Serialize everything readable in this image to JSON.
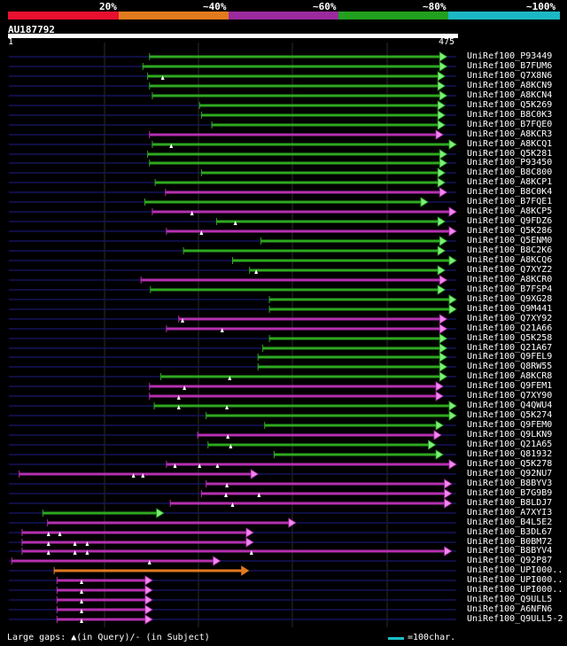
{
  "scale": {
    "labels": [
      "20%",
      "~40%",
      "~60%",
      "~80%",
      "~100%"
    ],
    "colors": [
      "#e8102e",
      "#e37b1e",
      "#9b2a9e",
      "#23a020",
      "#1bb8c4"
    ]
  },
  "query": {
    "id": "AU187792",
    "start": "1",
    "end": "475"
  },
  "colors": {
    "green": "#2ea820",
    "magenta": "#b530b0",
    "orange": "#e07a20",
    "arrow_green": "#7cf07a",
    "arrow_magenta": "#f088f0"
  },
  "chart_data": {
    "type": "alignment",
    "title": "AU187792",
    "x_range": [
      1,
      475
    ],
    "rows": [
      {
        "name": "UniRef100_P93449",
        "start": 150,
        "end": 465,
        "color": "green",
        "marks": []
      },
      {
        "name": "UniRef100_B7FUM6",
        "start": 143,
        "end": 465,
        "color": "green",
        "marks": []
      },
      {
        "name": "UniRef100_Q7X8N6",
        "start": 148,
        "end": 463,
        "color": "green",
        "marks": [
          164
        ]
      },
      {
        "name": "UniRef100_A8KCN9",
        "start": 150,
        "end": 463,
        "color": "green",
        "marks": []
      },
      {
        "name": "UniRef100_A8KCN4",
        "start": 153,
        "end": 465,
        "color": "green",
        "marks": []
      },
      {
        "name": "UniRef100_Q5K269",
        "start": 203,
        "end": 463,
        "color": "green",
        "marks": []
      },
      {
        "name": "UniRef100_B8C0K3",
        "start": 205,
        "end": 463,
        "color": "green",
        "marks": []
      },
      {
        "name": "UniRef100_B7FQE0",
        "start": 216,
        "end": 463,
        "color": "green",
        "marks": []
      },
      {
        "name": "UniRef100_A8KCR3",
        "start": 150,
        "end": 461,
        "color": "magenta",
        "marks": []
      },
      {
        "name": "UniRef100_A8KCQ1",
        "start": 153,
        "end": 475,
        "color": "green",
        "marks": [
          173
        ]
      },
      {
        "name": "UniRef100_Q5K281",
        "start": 148,
        "end": 465,
        "color": "green",
        "marks": []
      },
      {
        "name": "UniRef100_P93450",
        "start": 150,
        "end": 465,
        "color": "green",
        "marks": []
      },
      {
        "name": "UniRef100_B8C800",
        "start": 205,
        "end": 463,
        "color": "green",
        "marks": []
      },
      {
        "name": "UniRef100_A8KCP1",
        "start": 156,
        "end": 463,
        "color": "green",
        "marks": []
      },
      {
        "name": "UniRef100_B8C0K4",
        "start": 167,
        "end": 465,
        "color": "magenta",
        "marks": []
      },
      {
        "name": "UniRef100_B7FQE1",
        "start": 145,
        "end": 445,
        "color": "green",
        "marks": []
      },
      {
        "name": "UniRef100_A8KCP5",
        "start": 153,
        "end": 475,
        "color": "magenta",
        "marks": [
          195
        ]
      },
      {
        "name": "UniRef100_Q9FDZ6",
        "start": 221,
        "end": 463,
        "color": "green",
        "marks": [
          241
        ]
      },
      {
        "name": "UniRef100_Q5K286",
        "start": 168,
        "end": 475,
        "color": "magenta",
        "marks": [
          205
        ]
      },
      {
        "name": "UniRef100_Q5ENM0",
        "start": 268,
        "end": 465,
        "color": "green",
        "marks": []
      },
      {
        "name": "UniRef100_B8C2K6",
        "start": 186,
        "end": 463,
        "color": "green",
        "marks": []
      },
      {
        "name": "UniRef100_A8KCQ6",
        "start": 238,
        "end": 475,
        "color": "green",
        "marks": []
      },
      {
        "name": "UniRef100_Q7XYZ2",
        "start": 256,
        "end": 463,
        "color": "green",
        "marks": [
          263
        ]
      },
      {
        "name": "UniRef100_A8KCR0",
        "start": 141,
        "end": 465,
        "color": "magenta",
        "marks": []
      },
      {
        "name": "UniRef100_B7FSP4",
        "start": 151,
        "end": 463,
        "color": "green",
        "marks": []
      },
      {
        "name": "UniRef100_Q9XG28",
        "start": 277,
        "end": 475,
        "color": "green",
        "marks": []
      },
      {
        "name": "UniRef100_Q9M441",
        "start": 277,
        "end": 475,
        "color": "green",
        "marks": []
      },
      {
        "name": "UniRef100_Q7XY92",
        "start": 181,
        "end": 465,
        "color": "magenta",
        "marks": [
          185
        ]
      },
      {
        "name": "UniRef100_Q21A66",
        "start": 168,
        "end": 465,
        "color": "magenta",
        "marks": [
          227
        ]
      },
      {
        "name": "UniRef100_Q5K258",
        "start": 277,
        "end": 465,
        "color": "green",
        "marks": []
      },
      {
        "name": "UniRef100_Q21A67",
        "start": 270,
        "end": 465,
        "color": "green",
        "marks": []
      },
      {
        "name": "UniRef100_Q9FEL9",
        "start": 265,
        "end": 465,
        "color": "green",
        "marks": []
      },
      {
        "name": "UniRef100_Q8RW55",
        "start": 265,
        "end": 465,
        "color": "green",
        "marks": []
      },
      {
        "name": "UniRef100_A8KCR8",
        "start": 162,
        "end": 465,
        "color": "green",
        "marks": [
          235
        ]
      },
      {
        "name": "UniRef100_Q9FEM1",
        "start": 150,
        "end": 461,
        "color": "magenta",
        "marks": [
          187
        ]
      },
      {
        "name": "UniRef100_Q7XY90",
        "start": 150,
        "end": 461,
        "color": "magenta",
        "marks": [
          181
        ]
      },
      {
        "name": "UniRef100_Q4QWU4",
        "start": 155,
        "end": 475,
        "color": "green",
        "marks": [
          181,
          232
        ]
      },
      {
        "name": "UniRef100_Q5K274",
        "start": 210,
        "end": 475,
        "color": "green",
        "marks": []
      },
      {
        "name": "UniRef100_Q9FEM0",
        "start": 272,
        "end": 461,
        "color": "green",
        "marks": []
      },
      {
        "name": "UniRef100_Q9LKN9",
        "start": 201,
        "end": 459,
        "color": "magenta",
        "marks": [
          233
        ]
      },
      {
        "name": "UniRef100_Q21A65",
        "start": 212,
        "end": 453,
        "color": "green",
        "marks": [
          236
        ]
      },
      {
        "name": "UniRef100_Q81932",
        "start": 282,
        "end": 461,
        "color": "green",
        "marks": []
      },
      {
        "name": "UniRef100_Q5K278",
        "start": 168,
        "end": 475,
        "color": "magenta",
        "marks": [
          177,
          203,
          222
        ]
      },
      {
        "name": "UniRef100_Q92NU7",
        "start": 12,
        "end": 265,
        "color": "magenta",
        "marks": [
          133,
          143
        ]
      },
      {
        "name": "UniRef100_B8BYV3",
        "start": 210,
        "end": 470,
        "color": "magenta",
        "marks": [
          232
        ]
      },
      {
        "name": "UniRef100_B7G9B9",
        "start": 205,
        "end": 470,
        "color": "magenta",
        "marks": [
          231,
          266
        ]
      },
      {
        "name": "UniRef100_B8LDJ7",
        "start": 172,
        "end": 470,
        "color": "magenta",
        "marks": [
          238
        ]
      },
      {
        "name": "UniRef100_A7XYI3",
        "start": 37,
        "end": 165,
        "color": "green",
        "marks": []
      },
      {
        "name": "UniRef100_B4L5E2",
        "start": 42,
        "end": 305,
        "color": "magenta",
        "marks": []
      },
      {
        "name": "UniRef100_B3DL67",
        "start": 15,
        "end": 260,
        "color": "magenta",
        "marks": [
          43,
          55
        ]
      },
      {
        "name": "UniRef100_B0BM72",
        "start": 15,
        "end": 260,
        "color": "magenta",
        "marks": [
          43,
          71,
          84
        ]
      },
      {
        "name": "UniRef100_B8BYV4",
        "start": 15,
        "end": 470,
        "color": "magenta",
        "marks": [
          43,
          71,
          84,
          258
        ]
      },
      {
        "name": "UniRef100_Q92P87",
        "start": 4,
        "end": 225,
        "color": "magenta",
        "marks": [
          150
        ]
      },
      {
        "name": "UniRef100_UPI000..",
        "start": 49,
        "end": 255,
        "color": "orange",
        "marks": []
      },
      {
        "name": "UniRef100_UPI000..",
        "start": 52,
        "end": 153,
        "color": "magenta",
        "marks": [
          78
        ]
      },
      {
        "name": "UniRef100_UPI000..",
        "start": 52,
        "end": 153,
        "color": "magenta",
        "marks": [
          78
        ]
      },
      {
        "name": "UniRef100_Q9ULL5",
        "start": 52,
        "end": 153,
        "color": "magenta",
        "marks": [
          78
        ]
      },
      {
        "name": "UniRef100_A6NFN6",
        "start": 52,
        "end": 153,
        "color": "magenta",
        "marks": [
          78
        ]
      },
      {
        "name": "UniRef100_Q9ULL5-2",
        "start": 52,
        "end": 153,
        "color": "magenta",
        "marks": [
          78
        ]
      }
    ]
  },
  "footer": {
    "gaps": "Large gaps: ▲(in Query)/- (in Subject)",
    "legend": "=100char."
  }
}
